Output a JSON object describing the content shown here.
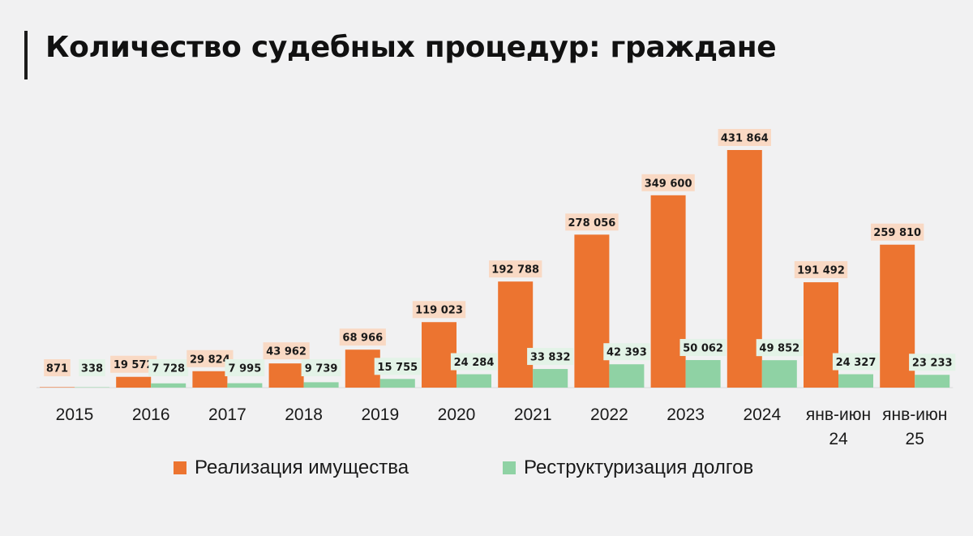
{
  "title": "Количество судебных процедур: граждане",
  "chart_data": {
    "type": "bar",
    "categories": [
      "2015",
      "2016",
      "2017",
      "2018",
      "2019",
      "2020",
      "2021",
      "2022",
      "2023",
      "2024",
      "янв-июн 24",
      "янв-июн 25"
    ],
    "ylim": [
      0,
      450000
    ],
    "grid": false,
    "legend_position": "bottom",
    "series": [
      {
        "name": "Реализация имущества",
        "color": "#ec7430",
        "label_bg": "#f9d9c4",
        "values": [
          871,
          19572,
          29824,
          43962,
          68966,
          119023,
          192788,
          278056,
          349600,
          431864,
          191492,
          259810
        ],
        "labels": [
          "871",
          "19 572",
          "29 824",
          "43 962",
          "68 966",
          "119 023",
          "192 788",
          "278 056",
          "349 600",
          "431 864",
          "191 492",
          "259 810"
        ]
      },
      {
        "name": "Реструктуризация долгов",
        "color": "#8fd2a4",
        "label_bg": "#e3f3e7",
        "values": [
          338,
          7728,
          7995,
          9739,
          15755,
          24284,
          33832,
          42393,
          50062,
          49852,
          24327,
          23233
        ],
        "labels": [
          "338",
          "7 728",
          "7 995",
          "9 739",
          "15 755",
          "24 284",
          "33 832",
          "42 393",
          "50 062",
          "49 852",
          "24 327",
          "23 233"
        ]
      }
    ]
  }
}
